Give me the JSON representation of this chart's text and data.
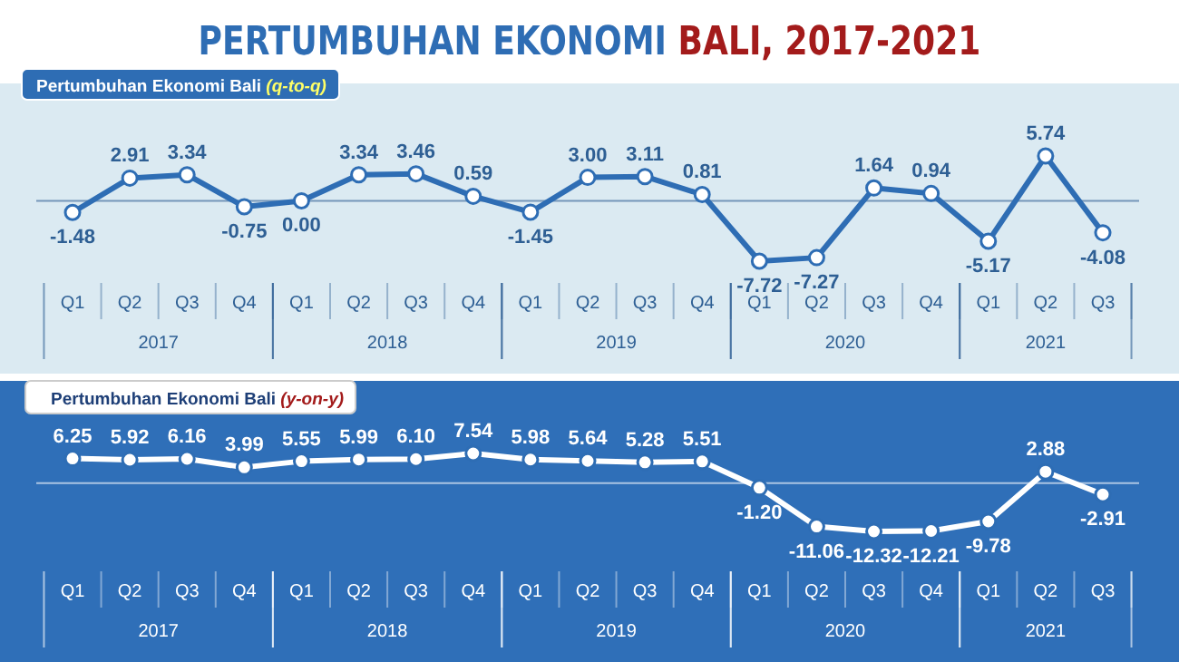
{
  "chart_data": [
    {
      "type": "line",
      "title": "PERTUMBUHAN EKONOMI BALI, 2017-2021",
      "subtitle": "Pertumbuhan Ekonomi Bali (q-to-q)",
      "categories": [
        "Q1",
        "Q2",
        "Q3",
        "Q4",
        "Q1",
        "Q2",
        "Q3",
        "Q4",
        "Q1",
        "Q2",
        "Q3",
        "Q4",
        "Q1",
        "Q2",
        "Q3",
        "Q4",
        "Q1",
        "Q2",
        "Q3"
      ],
      "series": [
        {
          "color": "#2e6db4",
          "values": [
            -1.48,
            2.91,
            3.34,
            -0.75,
            0.0,
            3.34,
            3.46,
            0.59,
            -1.45,
            3.0,
            3.11,
            0.81,
            -7.72,
            -7.27,
            1.64,
            0.94,
            -5.17,
            5.74,
            -4.08
          ],
          "value_labels": [
            "-1.48",
            "2.91",
            "3.34",
            "-0.75",
            "0.00",
            "3.34",
            "3.46",
            "0.59",
            "-1.45",
            "3.00",
            "3.11",
            "0.81",
            "-7.72",
            "-7.27",
            "1.64",
            "0.94",
            "-5.17",
            "5.74",
            "-4.08"
          ]
        }
      ],
      "marker": "circle",
      "ref_lines": [
        {
          "axis": "y",
          "value": 0
        }
      ],
      "annotations": [
        "2017",
        "2018",
        "2019",
        "2020",
        "2021"
      ]
    },
    {
      "type": "line",
      "title": "Pertumbuhan Ekonomi Bali (y-on-y)",
      "categories": [
        "Q1",
        "Q2",
        "Q3",
        "Q4",
        "Q1",
        "Q2",
        "Q3",
        "Q4",
        "Q1",
        "Q2",
        "Q3",
        "Q4",
        "Q1",
        "Q2",
        "Q3",
        "Q4",
        "Q1",
        "Q2",
        "Q3"
      ],
      "series": [
        {
          "color": "#ffffff",
          "values": [
            6.25,
            5.92,
            6.16,
            3.99,
            5.55,
            5.99,
            6.1,
            7.54,
            5.98,
            5.64,
            5.28,
            5.51,
            -1.2,
            -11.06,
            -12.32,
            -12.21,
            -9.78,
            2.88,
            -2.91
          ],
          "value_labels": [
            "6.25",
            "5.92",
            "6.16",
            "3.99",
            "5.55",
            "5.99",
            "6.10",
            "7.54",
            "5.98",
            "5.64",
            "5.28",
            "5.51",
            "-1.20",
            "-11.06",
            "-12.32",
            "-12.21",
            "-9.78",
            "2.88",
            "-2.91"
          ]
        }
      ],
      "marker": "circle",
      "ref_lines": [
        {
          "axis": "y",
          "value": 0
        }
      ],
      "annotations": [
        "2017",
        "2018",
        "2019",
        "2020",
        "2021"
      ]
    }
  ]
}
